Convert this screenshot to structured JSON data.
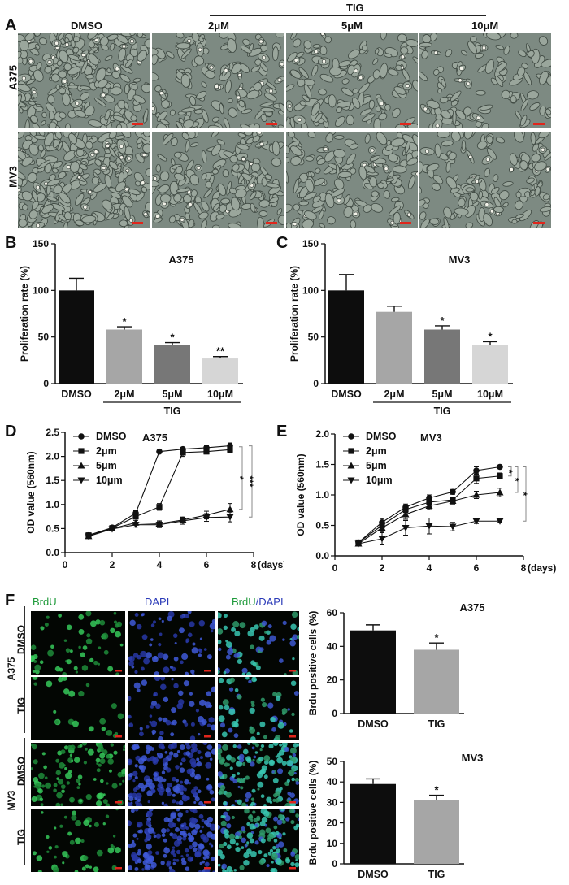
{
  "panels": {
    "A": {
      "letter": "A",
      "group_label": "TIG",
      "columns": [
        "DMSO",
        "2μM",
        "5μM",
        "10μM"
      ],
      "rows": [
        "A375",
        "MV3"
      ]
    },
    "B": {
      "letter": "B"
    },
    "C": {
      "letter": "C"
    },
    "D": {
      "letter": "D"
    },
    "E": {
      "letter": "E"
    },
    "F": {
      "letter": "F",
      "columns": [
        {
          "parts": [
            {
              "text": "BrdU",
              "color": "#1e9a3a"
            }
          ]
        },
        {
          "parts": [
            {
              "text": "DAPI",
              "color": "#2a3ab8"
            }
          ]
        },
        {
          "parts": [
            {
              "text": "BrdU",
              "color": "#1e9a3a"
            },
            {
              "text": "/DAPI",
              "color": "#2a3ab8"
            }
          ]
        }
      ],
      "groups": [
        "A375",
        "MV3"
      ],
      "rows": [
        "DMSO",
        "TIG",
        "DMSO",
        "TIG"
      ]
    }
  },
  "chart_data": [
    {
      "id": "B",
      "type": "bar",
      "title": "A375",
      "ylabel": "Proliferation rate (%)",
      "categories": [
        "DMSO",
        "2μM",
        "5μM",
        "10μM"
      ],
      "values": [
        100,
        58,
        41,
        27
      ],
      "errors": [
        13,
        3,
        3,
        2
      ],
      "significance": [
        "",
        "*",
        "*",
        "**"
      ],
      "bar_colors": [
        "#0d0d0d",
        "#a6a6a6",
        "#777777",
        "#d6d6d6"
      ],
      "ylim": [
        0,
        150
      ],
      "yticks": [
        0,
        50,
        100,
        150
      ],
      "group_label": "TIG",
      "group_span": [
        1,
        3
      ]
    },
    {
      "id": "C",
      "type": "bar",
      "title": "MV3",
      "ylabel": "Proliferation rate (%)",
      "categories": [
        "DMSO",
        "2μM",
        "5μM",
        "10μM"
      ],
      "values": [
        100,
        77,
        58,
        41
      ],
      "errors": [
        17,
        6,
        4,
        4
      ],
      "significance": [
        "",
        "",
        "*",
        "*"
      ],
      "bar_colors": [
        "#0d0d0d",
        "#a6a6a6",
        "#777777",
        "#d6d6d6"
      ],
      "ylim": [
        0,
        150
      ],
      "yticks": [
        0,
        50,
        100,
        150
      ],
      "group_label": "TIG",
      "group_span": [
        1,
        3
      ]
    },
    {
      "id": "D",
      "type": "line",
      "title": "A375",
      "ylabel": "OD value (560nm)",
      "xlabel_unit": "(days)",
      "xlim": [
        0,
        8
      ],
      "xticks": [
        0,
        2,
        4,
        6,
        8
      ],
      "ylim": [
        0,
        2.5
      ],
      "yticks": [
        0.0,
        0.5,
        1.0,
        1.5,
        2.0,
        2.5
      ],
      "x": [
        1,
        2,
        3,
        4,
        5,
        6,
        7
      ],
      "series": [
        {
          "name": "DMSO",
          "marker": "circle",
          "values": [
            0.36,
            0.52,
            0.82,
            2.1,
            2.15,
            2.18,
            2.22
          ],
          "errors": [
            0.03,
            0.04,
            0.05,
            0.03,
            0.04,
            0.05,
            0.06
          ]
        },
        {
          "name": "2μm",
          "marker": "square",
          "values": [
            0.36,
            0.51,
            0.75,
            0.95,
            2.08,
            2.1,
            2.14
          ],
          "errors": [
            0.03,
            0.04,
            0.05,
            0.07,
            0.08,
            0.05,
            0.06
          ]
        },
        {
          "name": "5μm",
          "marker": "triangle",
          "values": [
            0.34,
            0.5,
            0.62,
            0.6,
            0.68,
            0.78,
            0.9
          ],
          "errors": [
            0.03,
            0.04,
            0.05,
            0.06,
            0.06,
            0.08,
            0.12
          ]
        },
        {
          "name": "10μm",
          "marker": "triangle-down",
          "values": [
            0.34,
            0.49,
            0.58,
            0.58,
            0.66,
            0.73,
            0.74
          ],
          "errors": [
            0.03,
            0.04,
            0.05,
            0.06,
            0.07,
            0.08,
            0.1
          ]
        }
      ],
      "significance": [
        "*",
        "***"
      ]
    },
    {
      "id": "E",
      "type": "line",
      "title": "MV3",
      "ylabel": "OD value (560nm)",
      "xlabel_unit": "(days)",
      "xlim": [
        0,
        8
      ],
      "xticks": [
        0,
        2,
        4,
        6,
        8
      ],
      "ylim": [
        0,
        2.0
      ],
      "yticks": [
        0.0,
        0.5,
        1.0,
        1.5,
        2.0
      ],
      "x": [
        1,
        2,
        3,
        4,
        5,
        6,
        7
      ],
      "series": [
        {
          "name": "DMSO",
          "marker": "circle",
          "values": [
            0.22,
            0.55,
            0.8,
            0.95,
            1.05,
            1.4,
            1.46
          ],
          "errors": [
            0.03,
            0.06,
            0.05,
            0.05,
            0.04,
            0.06,
            0.03
          ]
        },
        {
          "name": "2μm",
          "marker": "square",
          "values": [
            0.22,
            0.5,
            0.76,
            0.88,
            0.92,
            1.27,
            1.31
          ],
          "errors": [
            0.03,
            0.06,
            0.05,
            0.05,
            0.04,
            0.08,
            0.05
          ]
        },
        {
          "name": "5μm",
          "marker": "triangle",
          "values": [
            0.2,
            0.46,
            0.68,
            0.82,
            0.9,
            1.0,
            1.04
          ],
          "errors": [
            0.03,
            0.07,
            0.08,
            0.06,
            0.05,
            0.06,
            0.07
          ]
        },
        {
          "name": "10μm",
          "marker": "triangle-down",
          "values": [
            0.2,
            0.28,
            0.46,
            0.49,
            0.48,
            0.57,
            0.57
          ],
          "errors": [
            0.03,
            0.1,
            0.12,
            0.13,
            0.07,
            0.04,
            0.02
          ]
        }
      ],
      "significance": [
        "*",
        "*",
        "*"
      ]
    },
    {
      "id": "F1",
      "type": "bar",
      "title": "A375",
      "ylabel": "Brdu positive cells (%)",
      "categories": [
        "DMSO",
        "TIG"
      ],
      "values": [
        49.5,
        38
      ],
      "errors": [
        3.3,
        4
      ],
      "significance": [
        "",
        "*"
      ],
      "bar_colors": [
        "#0d0d0d",
        "#a6a6a6"
      ],
      "ylim": [
        0,
        60
      ],
      "yticks": [
        0,
        20,
        40,
        60
      ]
    },
    {
      "id": "F2",
      "type": "bar",
      "title": "MV3",
      "ylabel": "Brdu positive cells (%)",
      "categories": [
        "DMSO",
        "TIG"
      ],
      "values": [
        39,
        31
      ],
      "errors": [
        2.5,
        2.5
      ],
      "significance": [
        "",
        "*"
      ],
      "bar_colors": [
        "#0d0d0d",
        "#a6a6a6"
      ],
      "ylim": [
        0,
        50
      ],
      "yticks": [
        0,
        10,
        20,
        30,
        40,
        50
      ]
    }
  ]
}
